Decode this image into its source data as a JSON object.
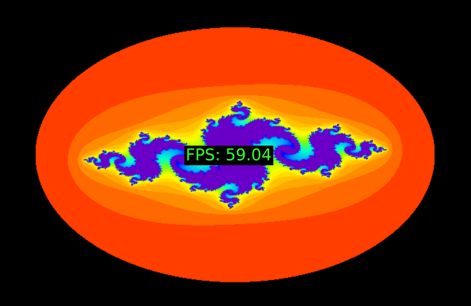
{
  "overlay": {
    "fps_text": "FPS: 59.04"
  },
  "viewport": {
    "background_color": "#000000",
    "fractal": "julia-set",
    "exterior_color": "#ff0000",
    "palette": [
      "#ff0000",
      "#ff8c00",
      "#ffff00",
      "#7fff00",
      "#00ffcc",
      "#00a0ff",
      "#0000ff",
      "#6a00c8"
    ]
  }
}
